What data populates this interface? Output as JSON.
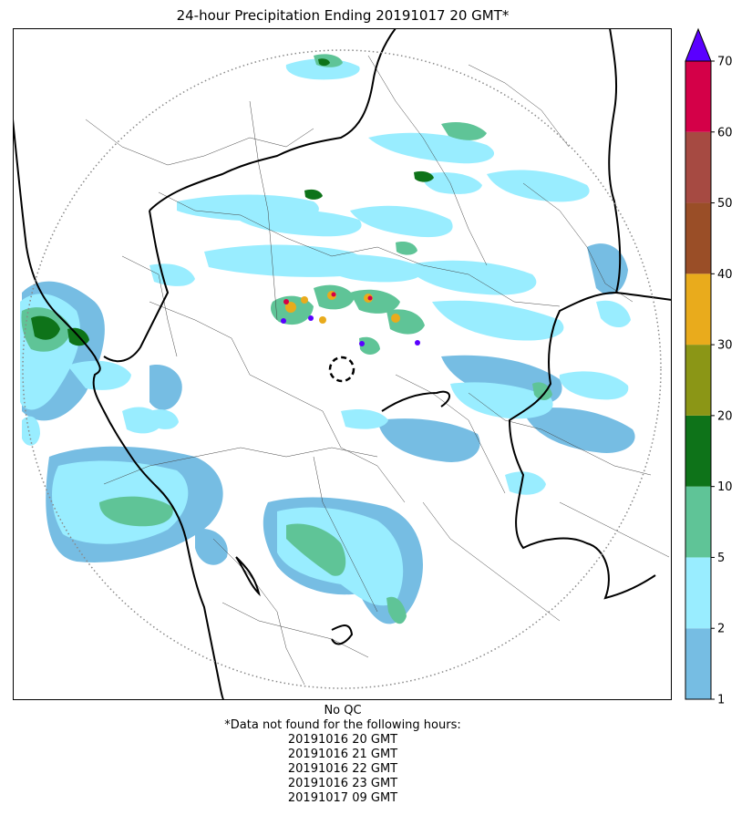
{
  "title": "24-hour Precipitation Ending 20191017 20 GMT*",
  "colorbar": {
    "levels": [
      1,
      2,
      5,
      10,
      20,
      30,
      40,
      50,
      60,
      70
    ],
    "tick_labels": [
      "1",
      "2",
      "5",
      "10",
      "20",
      "30",
      "40",
      "50",
      "60",
      "70"
    ],
    "colors": [
      "#76bde3",
      "#99edff",
      "#5fc497",
      "#0e7319",
      "#8b9616",
      "#e9ab1c",
      "#9a4e27",
      "#a64a42",
      "#d40048"
    ],
    "overflow_color": "#5a00ff"
  },
  "footer": {
    "qc": "No QC",
    "note": "*Data not found for the following hours:",
    "missing_hours": [
      "20191016 20 GMT",
      "20191016 21 GMT",
      "20191016 22 GMT",
      "20191016 23 GMT",
      "20191017 09 GMT"
    ]
  },
  "map_layers": {
    "range_ring": "dotted",
    "radar_site": "dashed-circle",
    "borders": [
      "state-border",
      "district-border",
      "coastline"
    ]
  }
}
